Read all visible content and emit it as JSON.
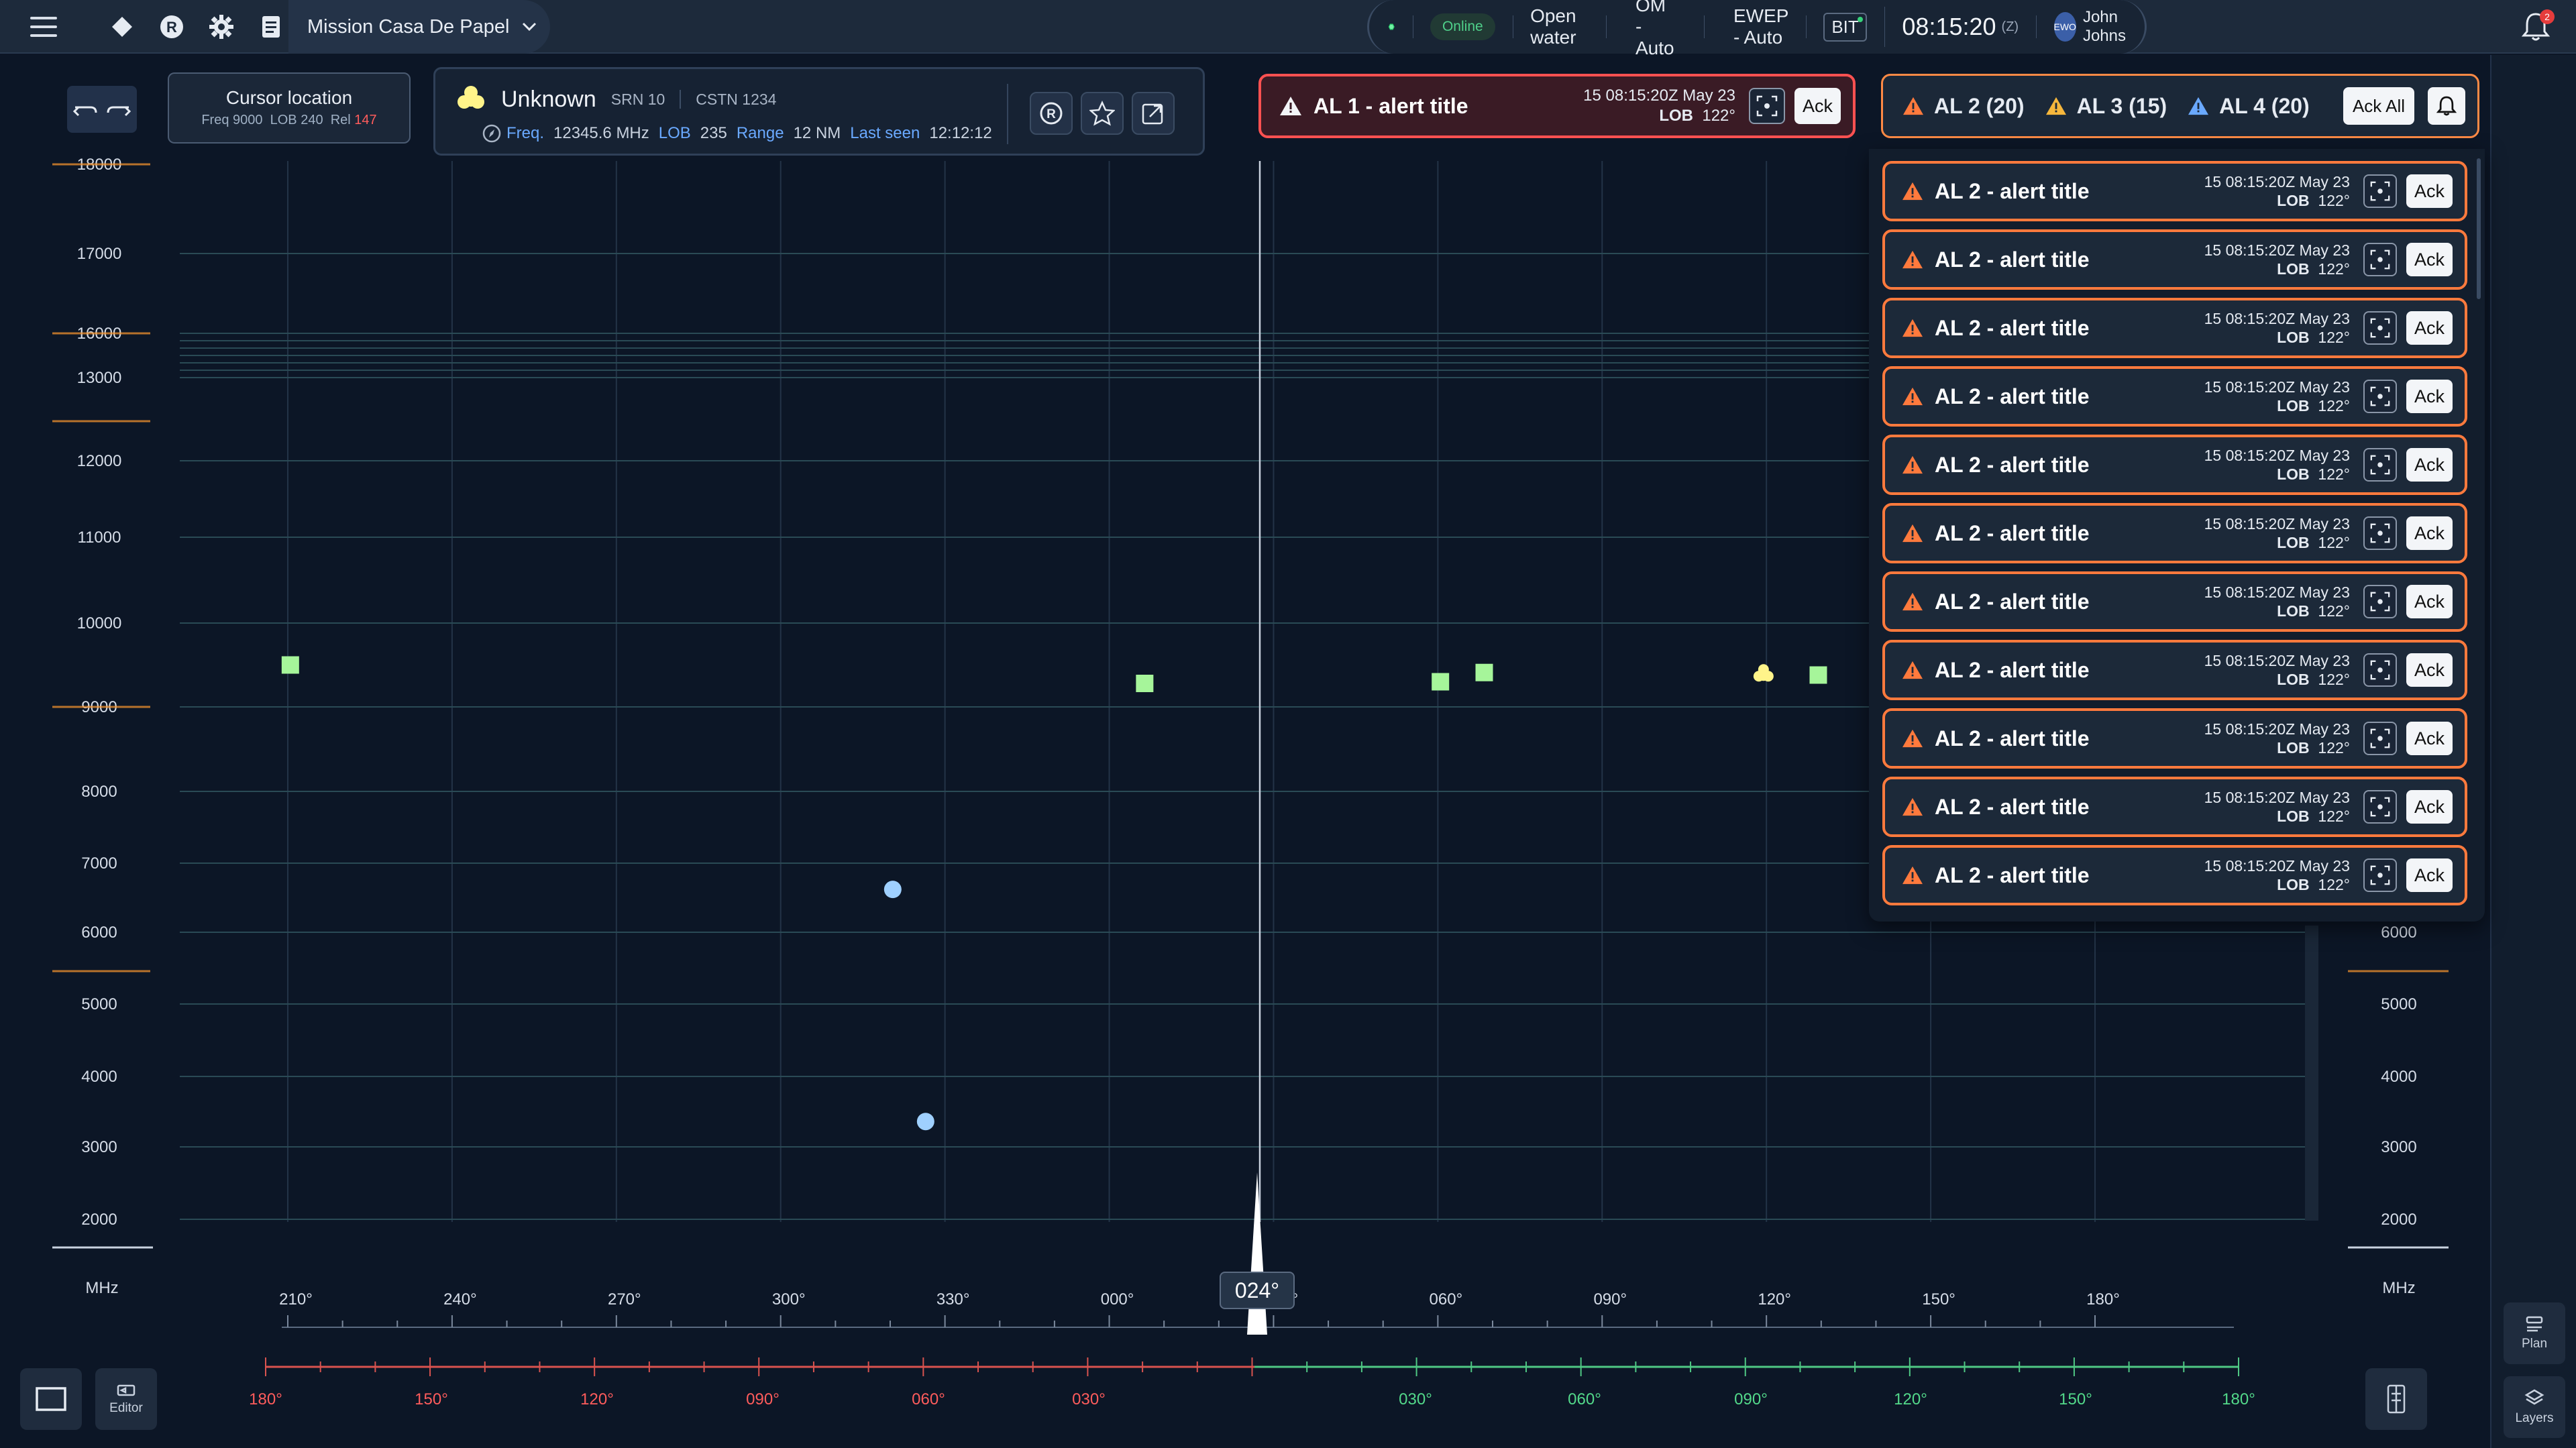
{
  "topbar": {
    "mission": "Mission Casa De Papel",
    "status": "Online",
    "environment": "Open water",
    "om_mode": "OM - Auto",
    "ewep_mode": "EWEP - Auto",
    "bit": "BIT",
    "time": "08:15:20",
    "time_zone": "(Z)",
    "user_initials": "EWO",
    "user_name": "John Johns",
    "notification_count": "2"
  },
  "cursor": {
    "title": "Cursor location",
    "freq_label": "Freq",
    "freq": "9000",
    "lob_label": "LOB",
    "lob": "240",
    "rel_label": "Rel",
    "rel": "147"
  },
  "target": {
    "name": "Unknown",
    "srn": "SRN 10",
    "cstn": "CSTN 1234",
    "freq_label": "Freq.",
    "freq": "12345.6 MHz",
    "lob_label": "LOB",
    "lob": "235",
    "range_label": "Range",
    "range": "12 NM",
    "last_seen_label": "Last seen",
    "last_seen": "12:12:12",
    "r_button": "R"
  },
  "alert_l1": {
    "title": "AL 1 - alert title",
    "time": "15  08:15:20Z  May 23",
    "lob_label": "LOB",
    "lob": "122°",
    "ack": "Ack"
  },
  "alert_summary": {
    "al2": "AL 2 (20)",
    "al3": "AL 3 (15)",
    "al4": "AL 4 (20)",
    "ack_all": "Ack All"
  },
  "alerts": [
    {
      "title": "AL 2 - alert title",
      "time": "15  08:15:20Z  May 23",
      "lob_label": "LOB",
      "lob": "122°",
      "ack": "Ack"
    },
    {
      "title": "AL 2 - alert title",
      "time": "15  08:15:20Z  May 23",
      "lob_label": "LOB",
      "lob": "122°",
      "ack": "Ack"
    },
    {
      "title": "AL 2 - alert title",
      "time": "15  08:15:20Z  May 23",
      "lob_label": "LOB",
      "lob": "122°",
      "ack": "Ack"
    },
    {
      "title": "AL 2 - alert title",
      "time": "15  08:15:20Z  May 23",
      "lob_label": "LOB",
      "lob": "122°",
      "ack": "Ack"
    },
    {
      "title": "AL 2 - alert title",
      "time": "15  08:15:20Z  May 23",
      "lob_label": "LOB",
      "lob": "122°",
      "ack": "Ack"
    },
    {
      "title": "AL 2 - alert title",
      "time": "15  08:15:20Z  May 23",
      "lob_label": "LOB",
      "lob": "122°",
      "ack": "Ack"
    },
    {
      "title": "AL 2 - alert title",
      "time": "15  08:15:20Z  May 23",
      "lob_label": "LOB",
      "lob": "122°",
      "ack": "Ack"
    },
    {
      "title": "AL 2 - alert title",
      "time": "15  08:15:20Z  May 23",
      "lob_label": "LOB",
      "lob": "122°",
      "ack": "Ack"
    },
    {
      "title": "AL 2 - alert title",
      "time": "15  08:15:20Z  May 23",
      "lob_label": "LOB",
      "lob": "122°",
      "ack": "Ack"
    },
    {
      "title": "AL 2 - alert title",
      "time": "15  08:15:20Z  May 23",
      "lob_label": "LOB",
      "lob": "122°",
      "ack": "Ack"
    },
    {
      "title": "AL 2 - alert title",
      "time": "15  08:15:20Z  May 23",
      "lob_label": "LOB",
      "lob": "122°",
      "ack": "Ack"
    }
  ],
  "plot": {
    "y_unit": "MHz",
    "y_ticks_left": [
      "18000",
      "17000",
      "16000",
      "13000",
      "12000",
      "11000",
      "10000",
      "9000",
      "8000",
      "7000",
      "6000",
      "5000",
      "4000",
      "3000",
      "2000"
    ],
    "y_ticks_right": [
      "6000",
      "5000",
      "4000",
      "3000",
      "2000"
    ],
    "bearing_ticks": [
      "210°",
      "240°",
      "270°",
      "300°",
      "330°",
      "000°",
      "030°",
      "060°",
      "090°",
      "120°",
      "150°",
      "180°"
    ],
    "relative_port": [
      "180°",
      "150°",
      "120°",
      "090°",
      "060°",
      "030°"
    ],
    "relative_stbd": [
      "030°",
      "060°",
      "090°",
      "120°",
      "150°",
      "180°"
    ],
    "current_bearing": "024°",
    "cursor_bearing": "024°",
    "emitters": [
      {
        "shape": "square",
        "color": "#a6f59a",
        "bearing": 209,
        "freq": 9500
      },
      {
        "shape": "square",
        "color": "#a6f59a",
        "bearing": 365,
        "freq": 9280
      },
      {
        "shape": "square",
        "color": "#a6f59a",
        "bearing": 419,
        "freq": 9300
      },
      {
        "shape": "square",
        "color": "#a6f59a",
        "bearing": 427,
        "freq": 9410
      },
      {
        "shape": "square",
        "color": "#a6f59a",
        "bearing": 488,
        "freq": 9380
      },
      {
        "shape": "clover",
        "color": "#fff48a",
        "bearing": 478,
        "freq": 9390
      },
      {
        "shape": "circle",
        "color": "#9fd0ff",
        "bearing": 319,
        "freq": 6620
      },
      {
        "shape": "circle",
        "color": "#9fd0ff",
        "bearing": 325,
        "freq": 3360
      }
    ]
  },
  "bottom": {
    "editor": "Editor",
    "plan": "Plan",
    "layers": "Layers"
  },
  "colors": {
    "background": "#0c1626",
    "alert_red": "#ff5151",
    "alert_orange": "#ff7a3d",
    "alert_yellow": "#f6b73c",
    "alert_blue": "#6aa9ff",
    "relative_port": "#ff5c5c",
    "relative_stbd": "#53d98a"
  }
}
